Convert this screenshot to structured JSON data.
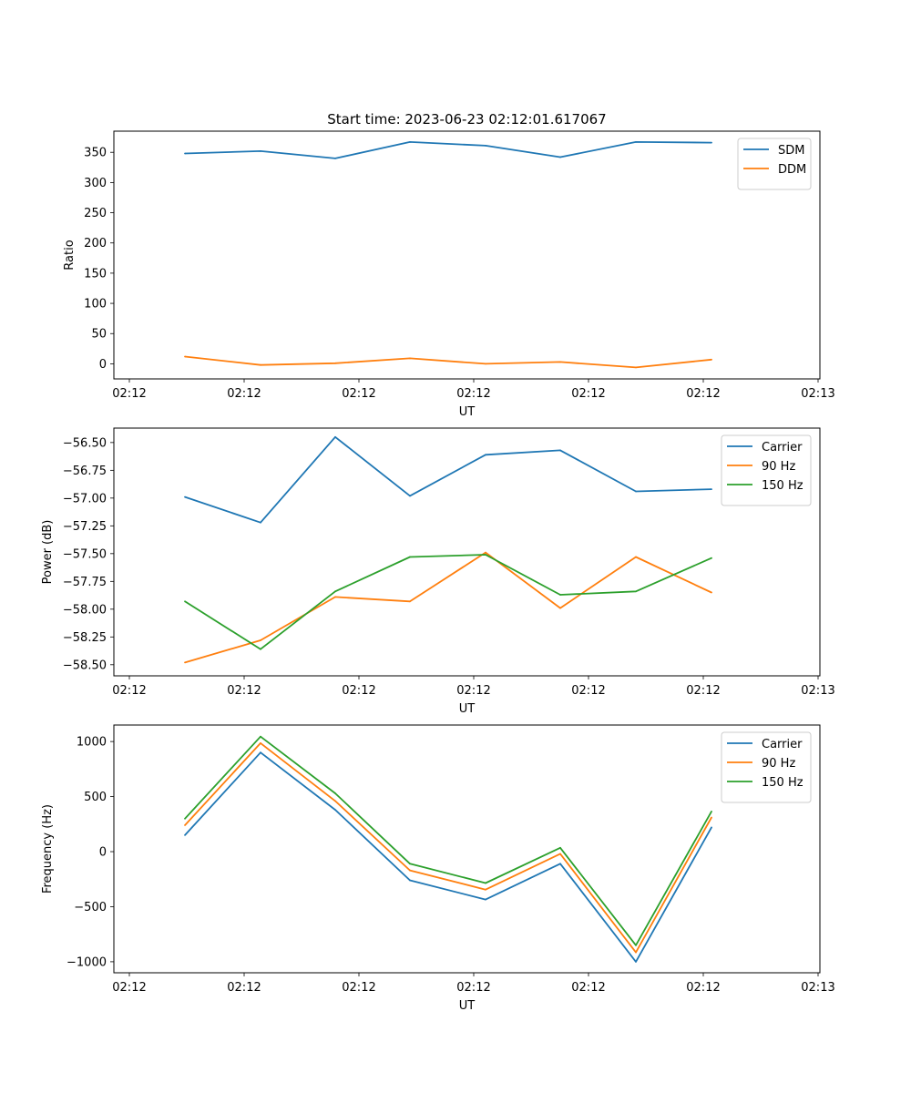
{
  "figure_title": "Start time: 2023-06-23 02:12:01.617067",
  "chart_data": [
    {
      "type": "line",
      "xlabel": "UT",
      "ylabel": "Ratio",
      "xticks": [
        "02:12",
        "02:12",
        "02:12",
        "02:12",
        "02:12",
        "02:12",
        "02:13"
      ],
      "ylim": [
        -25,
        385
      ],
      "yticks": [
        0,
        50,
        100,
        150,
        200,
        250,
        300,
        350
      ],
      "legend_position": "upper-right",
      "series": [
        {
          "name": "SDM",
          "color": "#1f77b4",
          "values": [
            348,
            352,
            340,
            367,
            361,
            342,
            367,
            366
          ]
        },
        {
          "name": "DDM",
          "color": "#ff7f0e",
          "values": [
            12,
            -2,
            1,
            9,
            0,
            3,
            -6,
            7
          ]
        }
      ]
    },
    {
      "type": "line",
      "xlabel": "UT",
      "ylabel": "Power (dB)",
      "xticks": [
        "02:12",
        "02:12",
        "02:12",
        "02:12",
        "02:12",
        "02:12",
        "02:13"
      ],
      "ylim": [
        -58.6,
        -56.37
      ],
      "yticks": [
        -58.5,
        -58.25,
        -58.0,
        -57.75,
        -57.5,
        -57.25,
        -57.0,
        -56.75,
        -56.5
      ],
      "ytick_labels": [
        "−58.50",
        "−58.25",
        "−58.00",
        "−57.75",
        "−57.50",
        "−57.25",
        "−57.00",
        "−56.75",
        "−56.50"
      ],
      "legend_position": "upper-right",
      "series": [
        {
          "name": "Carrier",
          "color": "#1f77b4",
          "values": [
            -56.99,
            -57.22,
            -56.45,
            -56.98,
            -56.61,
            -56.57,
            -56.94,
            -56.92
          ]
        },
        {
          "name": "90 Hz",
          "color": "#ff7f0e",
          "values": [
            -58.48,
            -58.28,
            -57.89,
            -57.93,
            -57.49,
            -57.99,
            -57.53,
            -57.85
          ]
        },
        {
          "name": "150 Hz",
          "color": "#2ca02c",
          "values": [
            -57.93,
            -58.36,
            -57.84,
            -57.53,
            -57.51,
            -57.87,
            -57.84,
            -57.54
          ]
        }
      ]
    },
    {
      "type": "line",
      "xlabel": "UT",
      "ylabel": "Frequency (Hz)",
      "xticks": [
        "02:12",
        "02:12",
        "02:12",
        "02:12",
        "02:12",
        "02:12",
        "02:13"
      ],
      "ylim": [
        -1100,
        1150
      ],
      "yticks": [
        -1000,
        -500,
        0,
        500,
        1000
      ],
      "ytick_labels": [
        "−1000",
        "−500",
        "0",
        "500",
        "1000"
      ],
      "legend_position": "upper-right",
      "series": [
        {
          "name": "Carrier",
          "color": "#1f77b4",
          "values": [
            150,
            900,
            380,
            -260,
            -435,
            -110,
            -1000,
            220
          ]
        },
        {
          "name": "90 Hz",
          "color": "#ff7f0e",
          "values": [
            240,
            985,
            460,
            -170,
            -345,
            -20,
            -915,
            310
          ]
        },
        {
          "name": "150 Hz",
          "color": "#2ca02c",
          "values": [
            300,
            1045,
            530,
            -110,
            -285,
            35,
            -850,
            365
          ]
        }
      ]
    }
  ]
}
